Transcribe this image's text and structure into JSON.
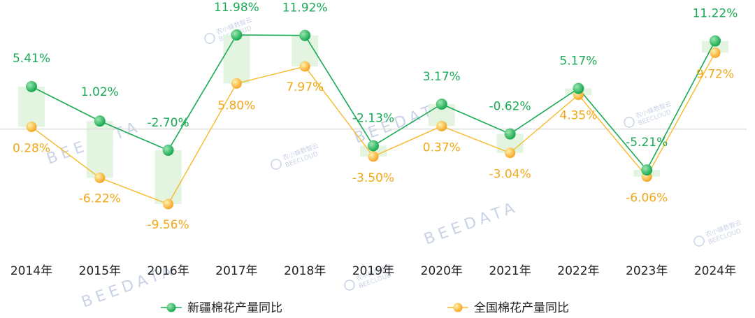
{
  "chart_data": {
    "type": "line",
    "title": "",
    "xlabel": "",
    "ylabel": "",
    "categories": [
      "2014年",
      "2015年",
      "2016年",
      "2017年",
      "2018年",
      "2019年",
      "2020年",
      "2021年",
      "2022年",
      "2023年",
      "2024年"
    ],
    "series": [
      {
        "name": "新疆棉花产量同比",
        "color": "#1aaa55",
        "marker": "#2ec46a",
        "values": [
          5.41,
          1.02,
          -2.7,
          11.98,
          11.92,
          -2.13,
          3.17,
          -0.62,
          5.17,
          -5.21,
          11.22
        ],
        "labels": [
          "5.41%",
          "1.02%",
          "-2.70%",
          "11.98%",
          "11.92%",
          "-2.13%",
          "3.17%",
          "-0.62%",
          "5.17%",
          "-5.21%",
          "11.22%"
        ]
      },
      {
        "name": "全国棉花产量同比",
        "color": "#f7b928",
        "marker": "#fbc02d",
        "values": [
          0.28,
          -6.22,
          -9.56,
          5.8,
          7.97,
          -3.5,
          0.37,
          -3.04,
          4.35,
          -6.06,
          9.72
        ],
        "labels": [
          "0.28%",
          "-6.22%",
          "-9.56%",
          "5.80%",
          "7.97%",
          "-3.50%",
          "0.37%",
          "-3.04%",
          "4.35%",
          "-6.06%",
          "9.72%"
        ]
      }
    ],
    "ylim": [
      -15,
      13
    ],
    "grid": false,
    "zero_line": true,
    "legend_position": "bottom",
    "gap_fill_color": "#e3f5e1"
  },
  "watermark": {
    "brand": "BEEDATA",
    "cn": "农小蜂数智云",
    "en": "BEECLOUD"
  }
}
